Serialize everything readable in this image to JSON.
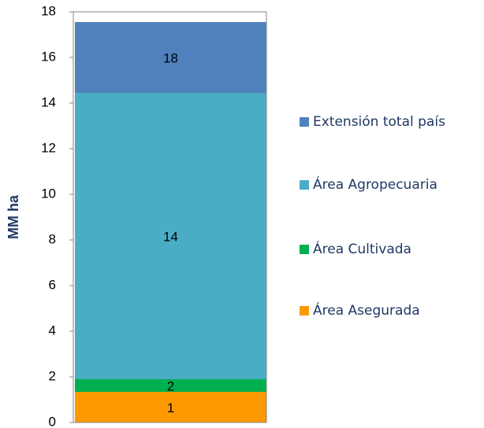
{
  "chart_data": {
    "type": "bar",
    "overlap": true,
    "y_label": "MM ha",
    "categories": [
      null
    ],
    "series": [
      {
        "name": "Extensión total país",
        "color": "#4f81bd",
        "values": [
          17.55
        ],
        "value_labels": [
          "18"
        ]
      },
      {
        "name": "Área Agropecuaria",
        "color": "#4bacc6",
        "values": [
          14.45
        ],
        "value_labels": [
          "14"
        ]
      },
      {
        "name": "Área Cultivada",
        "color": "#00b050",
        "values": [
          1.9
        ],
        "value_labels": [
          "2"
        ]
      },
      {
        "name": "Área Asegurada",
        "color": "#ff9900",
        "values": [
          1.34
        ],
        "value_labels": [
          "1"
        ]
      }
    ],
    "ylim": [
      0,
      18
    ],
    "yticks": [
      0,
      2,
      4,
      6,
      8,
      10,
      12,
      14,
      16,
      18
    ],
    "legend": "right"
  }
}
